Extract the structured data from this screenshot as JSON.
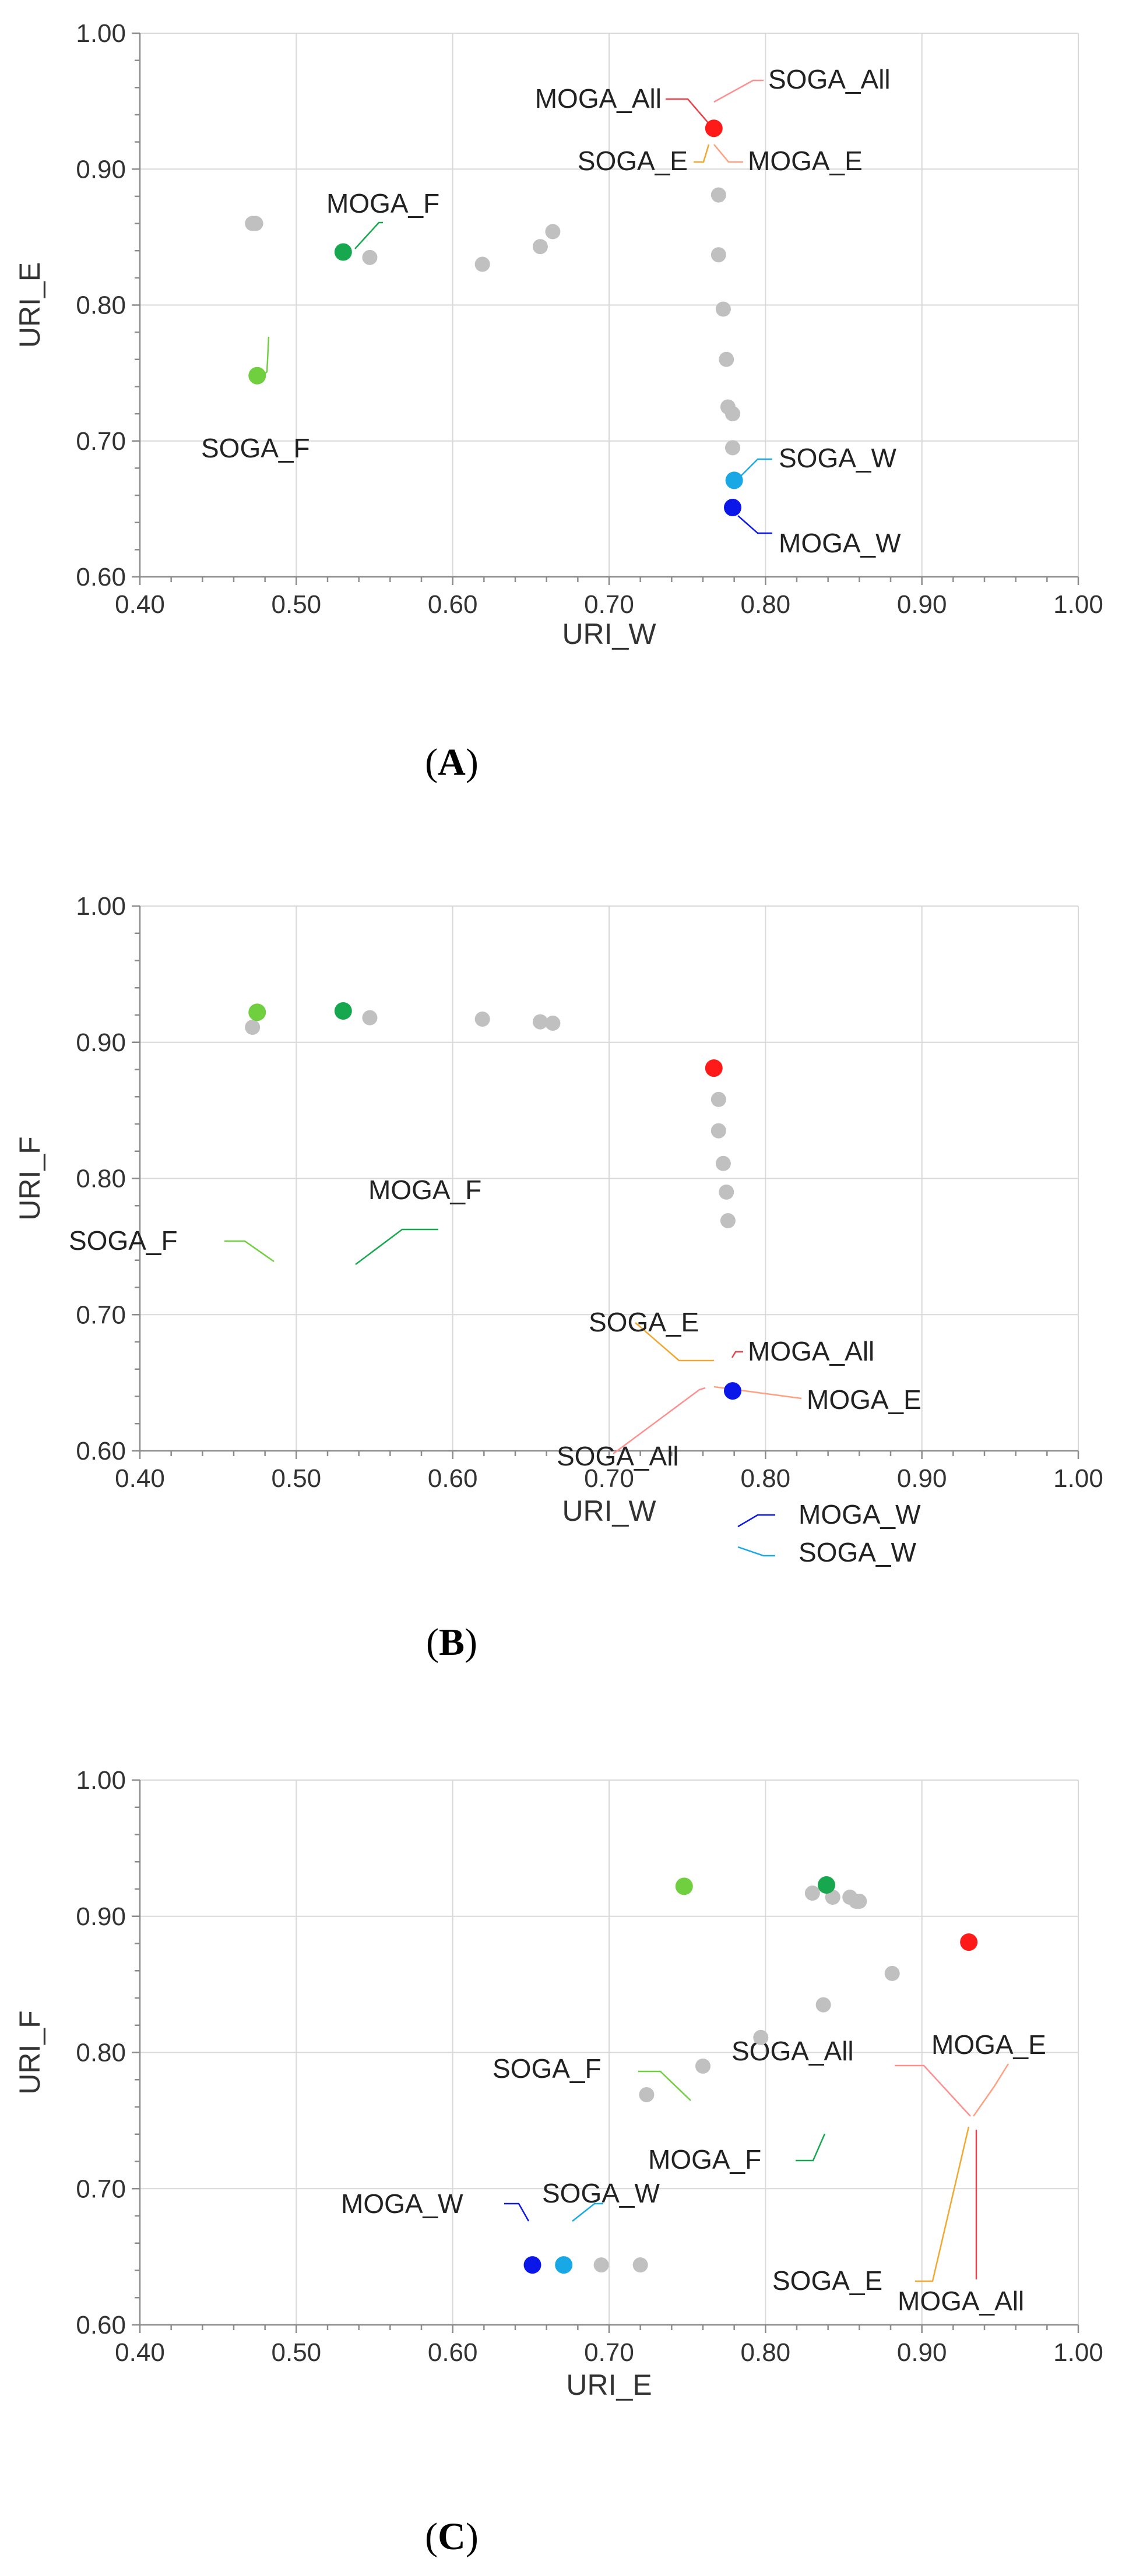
{
  "colors": {
    "grey": "#c0c0c0",
    "red": "#ff1a1a",
    "red_line": "#e8424a",
    "pink_line": "#ff8f8f",
    "orange_line": "#f0a830",
    "salmon_line": "#ffa080",
    "dark_green": "#17a84f",
    "light_green": "#6fcf3f",
    "blue": "#0b16e8",
    "cyan": "#19a8e6"
  },
  "chart_data": [
    {
      "type": "scatter",
      "panel_label": "A",
      "xlabel": "URI_W",
      "ylabel": "URI_E",
      "xlim": [
        0.4,
        1.0
      ],
      "ylim": [
        0.6,
        1.0
      ],
      "xticks": [
        "0.40",
        "0.50",
        "0.60",
        "0.70",
        "0.80",
        "0.90",
        "1.00"
      ],
      "yticks": [
        "0.60",
        "0.70",
        "0.80",
        "0.90",
        "1.00"
      ],
      "background_points": [
        {
          "x": 0.472,
          "y": 0.86
        },
        {
          "x": 0.474,
          "y": 0.86
        },
        {
          "x": 0.547,
          "y": 0.835
        },
        {
          "x": 0.619,
          "y": 0.83
        },
        {
          "x": 0.656,
          "y": 0.843
        },
        {
          "x": 0.664,
          "y": 0.854
        },
        {
          "x": 0.77,
          "y": 0.881
        },
        {
          "x": 0.77,
          "y": 0.837
        },
        {
          "x": 0.773,
          "y": 0.797
        },
        {
          "x": 0.775,
          "y": 0.76
        },
        {
          "x": 0.776,
          "y": 0.725
        },
        {
          "x": 0.779,
          "y": 0.72
        },
        {
          "x": 0.779,
          "y": 0.695
        }
      ],
      "highlighted_points": [
        {
          "name": "MOGA_F",
          "x": 0.53,
          "y": 0.839,
          "color": "#17a84f"
        },
        {
          "name": "SOGA_F",
          "x": 0.475,
          "y": 0.748,
          "color": "#6fcf3f"
        },
        {
          "name": "SOGA_All",
          "x": 0.767,
          "y": 0.93,
          "color": "#ff1a1a"
        },
        {
          "name": "SOGA_W",
          "x": 0.78,
          "y": 0.671,
          "color": "#19a8e6"
        },
        {
          "name": "MOGA_W",
          "x": 0.779,
          "y": 0.651,
          "color": "#0b16e8"
        }
      ],
      "annotations": [
        {
          "text": "SOGA_All",
          "color": "#ff8f8f"
        },
        {
          "text": "MOGA_All",
          "color": "#e8424a"
        },
        {
          "text": "SOGA_E",
          "color": "#f0a830"
        },
        {
          "text": "MOGA_E",
          "color": "#ffa080"
        },
        {
          "text": "MOGA_F",
          "color": "#17a84f"
        },
        {
          "text": "SOGA_F",
          "color": "#6fcf3f"
        },
        {
          "text": "SOGA_W",
          "color": "#19a8e6"
        },
        {
          "text": "MOGA_W",
          "color": "#0b16e8"
        }
      ]
    },
    {
      "type": "scatter",
      "panel_label": "B",
      "xlabel": "URI_W",
      "ylabel": "URI_F",
      "xlim": [
        0.4,
        1.0
      ],
      "ylim": [
        0.6,
        1.0
      ],
      "xticks": [
        "0.40",
        "0.50",
        "0.60",
        "0.70",
        "0.80",
        "0.90",
        "1.00"
      ],
      "yticks": [
        "0.60",
        "0.70",
        "0.80",
        "0.90",
        "1.00"
      ],
      "background_points": [
        {
          "x": 0.472,
          "y": 0.911
        },
        {
          "x": 0.547,
          "y": 0.918
        },
        {
          "x": 0.619,
          "y": 0.917
        },
        {
          "x": 0.656,
          "y": 0.915
        },
        {
          "x": 0.664,
          "y": 0.914
        },
        {
          "x": 0.77,
          "y": 0.858
        },
        {
          "x": 0.77,
          "y": 0.835
        },
        {
          "x": 0.773,
          "y": 0.811
        },
        {
          "x": 0.775,
          "y": 0.79
        },
        {
          "x": 0.776,
          "y": 0.769
        }
      ],
      "highlighted_points": [
        {
          "name": "SOGA_F",
          "x": 0.475,
          "y": 0.922,
          "color": "#6fcf3f"
        },
        {
          "name": "MOGA_F",
          "x": 0.53,
          "y": 0.923,
          "color": "#17a84f"
        },
        {
          "name": "SOGA_All",
          "x": 0.767,
          "y": 0.881,
          "color": "#ff1a1a"
        },
        {
          "name": "MOGA_W",
          "x": 0.779,
          "y": 0.644,
          "color": "#0b16e8"
        }
      ],
      "annotations": [
        {
          "text": "SOGA_F",
          "color": "#6fcf3f"
        },
        {
          "text": "MOGA_F",
          "color": "#17a84f"
        },
        {
          "text": "SOGA_E",
          "color": "#f0a830"
        },
        {
          "text": "MOGA_All",
          "color": "#e8424a"
        },
        {
          "text": "MOGA_E",
          "color": "#ffa080"
        },
        {
          "text": "SOGA_All",
          "color": "#ff8f8f"
        },
        {
          "text": "MOGA_W",
          "color": "#0b16e8"
        },
        {
          "text": "SOGA_W",
          "color": "#19a8e6"
        }
      ]
    },
    {
      "type": "scatter",
      "panel_label": "C",
      "xlabel": "URI_E",
      "ylabel": "URI_F",
      "xlim": [
        0.4,
        1.0
      ],
      "ylim": [
        0.6,
        1.0
      ],
      "xticks": [
        "0.40",
        "0.50",
        "0.60",
        "0.70",
        "0.80",
        "0.90",
        "1.00"
      ],
      "yticks": [
        "0.60",
        "0.70",
        "0.80",
        "0.90",
        "1.00"
      ],
      "background_points": [
        {
          "x": 0.83,
          "y": 0.917
        },
        {
          "x": 0.843,
          "y": 0.914
        },
        {
          "x": 0.854,
          "y": 0.914
        },
        {
          "x": 0.858,
          "y": 0.911
        },
        {
          "x": 0.86,
          "y": 0.911
        },
        {
          "x": 0.881,
          "y": 0.858
        },
        {
          "x": 0.837,
          "y": 0.835
        },
        {
          "x": 0.797,
          "y": 0.811
        },
        {
          "x": 0.76,
          "y": 0.79
        },
        {
          "x": 0.724,
          "y": 0.769
        },
        {
          "x": 0.695,
          "y": 0.644
        },
        {
          "x": 0.72,
          "y": 0.644
        }
      ],
      "highlighted_points": [
        {
          "name": "SOGA_F",
          "x": 0.748,
          "y": 0.922,
          "color": "#6fcf3f"
        },
        {
          "name": "MOGA_F",
          "x": 0.839,
          "y": 0.923,
          "color": "#17a84f"
        },
        {
          "name": "SOGA_All",
          "x": 0.93,
          "y": 0.881,
          "color": "#ff1a1a"
        },
        {
          "name": "MOGA_W",
          "x": 0.651,
          "y": 0.644,
          "color": "#0b16e8"
        },
        {
          "name": "SOGA_W",
          "x": 0.671,
          "y": 0.644,
          "color": "#19a8e6"
        }
      ],
      "annotations": [
        {
          "text": "SOGA_F",
          "color": "#6fcf3f"
        },
        {
          "text": "SOGA_All",
          "color": "#ff8f8f"
        },
        {
          "text": "MOGA_E",
          "color": "#ffa080"
        },
        {
          "text": "MOGA_F",
          "color": "#17a84f"
        },
        {
          "text": "SOGA_E",
          "color": "#f0a830"
        },
        {
          "text": "MOGA_All",
          "color": "#e8424a"
        },
        {
          "text": "MOGA_W",
          "color": "#0b16e8"
        },
        {
          "text": "SOGA_W",
          "color": "#19a8e6"
        }
      ]
    }
  ]
}
